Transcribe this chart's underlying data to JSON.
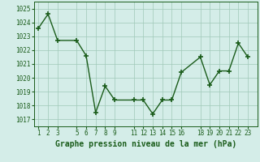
{
  "x": [
    1,
    2,
    3,
    5,
    6,
    7,
    8,
    9,
    11,
    12,
    13,
    14,
    15,
    16,
    18,
    19,
    20,
    21,
    22,
    23
  ],
  "y": [
    1023.6,
    1024.6,
    1022.7,
    1022.7,
    1021.6,
    1017.5,
    1019.4,
    1018.4,
    1018.4,
    1018.4,
    1017.4,
    1018.4,
    1018.4,
    1020.4,
    1021.5,
    1019.5,
    1020.5,
    1020.5,
    1022.5,
    1021.5
  ],
  "xticks": [
    1,
    2,
    3,
    5,
    6,
    7,
    8,
    9,
    11,
    12,
    13,
    14,
    15,
    16,
    18,
    19,
    20,
    21,
    22,
    23
  ],
  "xtick_labels": [
    "1",
    "2",
    "3",
    "5",
    "6",
    "7",
    "8",
    "9",
    "11",
    "12",
    "13",
    "14",
    "15",
    "16",
    "18",
    "19",
    "20",
    "21",
    "22",
    "23"
  ],
  "yticks": [
    1017,
    1018,
    1019,
    1020,
    1021,
    1022,
    1023,
    1024,
    1025
  ],
  "ylim": [
    1016.5,
    1025.5
  ],
  "xlim": [
    0.5,
    24.0
  ],
  "line_color": "#1a5c1a",
  "marker": "+",
  "marker_size": 4,
  "bg_color": "#d4ede8",
  "grid_color": "#a0c8b8",
  "xlabel": "Graphe pression niveau de la mer (hPa)",
  "xlabel_fontsize": 7,
  "tick_fontsize": 5.5,
  "line_width": 1.0
}
